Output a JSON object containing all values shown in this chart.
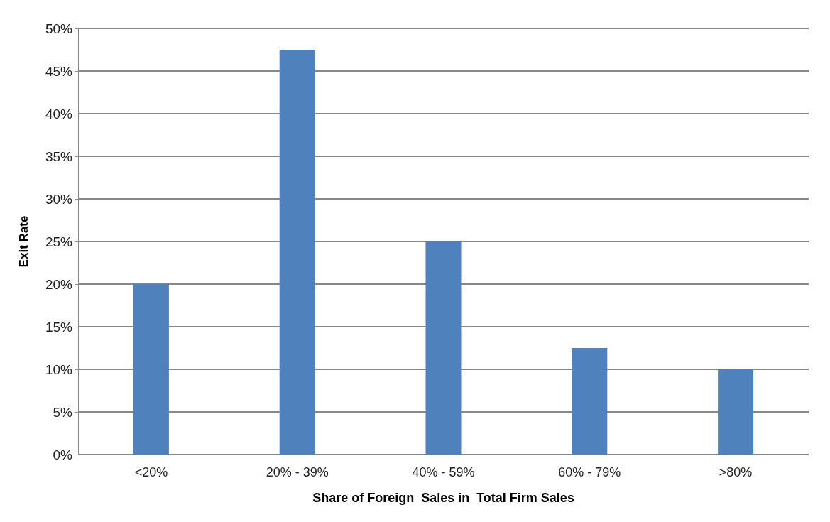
{
  "chart_data": {
    "type": "bar",
    "xlabel": "Share of Foreign  Sales in  Total Firm Sales",
    "ylabel": "Exit Rate",
    "categories": [
      "<20%",
      "20% - 39%",
      "40% - 59%",
      "60% - 79%",
      ">80%"
    ],
    "values": [
      20,
      47.5,
      25,
      12.5,
      10
    ],
    "color": "#4f81bd",
    "ylim": [
      0,
      50
    ],
    "yticks": [
      {
        "value": 0,
        "label": "0%"
      },
      {
        "value": 5,
        "label": "5%"
      },
      {
        "value": 10,
        "label": "10%"
      },
      {
        "value": 15,
        "label": "15%"
      },
      {
        "value": 20,
        "label": "20%"
      },
      {
        "value": 25,
        "label": "25%"
      },
      {
        "value": 30,
        "label": "30%"
      },
      {
        "value": 35,
        "label": "35%"
      },
      {
        "value": 40,
        "label": "40%"
      },
      {
        "value": 45,
        "label": "45%"
      },
      {
        "value": 50,
        "label": "50%"
      }
    ],
    "grid": "y"
  }
}
